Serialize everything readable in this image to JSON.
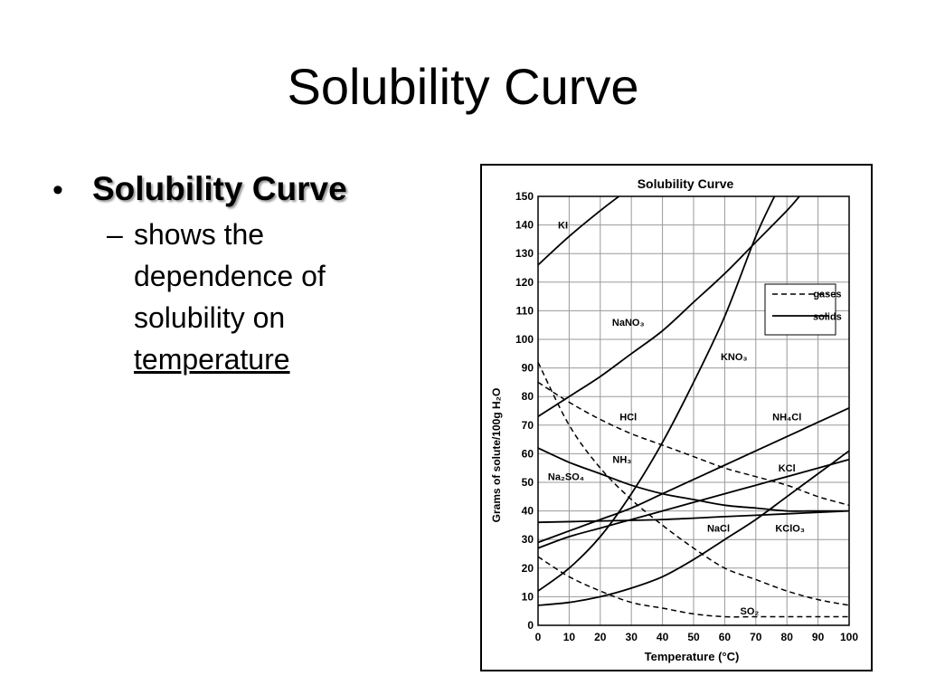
{
  "slide": {
    "title": "Solubility Curve",
    "bullet": "Solubility Curve",
    "sub_dash": "–",
    "sub_text": "shows the dependence of solubility on ",
    "sub_underlined": "temperature"
  },
  "chart_data": {
    "type": "line",
    "title": "Solubility Curve",
    "xlabel": "Temperature (°C)",
    "ylabel": "Grams of solute/100g H₂O",
    "xlim": [
      0,
      100
    ],
    "ylim": [
      0,
      150
    ],
    "xticks": [
      0,
      10,
      20,
      30,
      40,
      50,
      60,
      70,
      80,
      90,
      100
    ],
    "yticks": [
      0,
      10,
      20,
      30,
      40,
      50,
      60,
      70,
      80,
      90,
      100,
      110,
      120,
      130,
      140,
      150
    ],
    "grid": true,
    "legend": {
      "position": "top-right",
      "entries": [
        {
          "label": "gases",
          "style": "dashed"
        },
        {
          "label": "solids",
          "style": "solid"
        }
      ]
    },
    "series": [
      {
        "name": "KI",
        "style": "solid",
        "points": [
          [
            0,
            126
          ],
          [
            10,
            136
          ],
          [
            20,
            145
          ],
          [
            26,
            150
          ]
        ]
      },
      {
        "name": "NaNO3",
        "style": "solid",
        "points": [
          [
            0,
            73
          ],
          [
            10,
            80
          ],
          [
            20,
            87
          ],
          [
            30,
            95
          ],
          [
            40,
            103
          ],
          [
            50,
            113
          ],
          [
            60,
            123
          ],
          [
            70,
            134
          ],
          [
            80,
            145
          ],
          [
            84,
            150
          ]
        ]
      },
      {
        "name": "KNO3",
        "style": "solid",
        "points": [
          [
            0,
            12
          ],
          [
            10,
            20
          ],
          [
            20,
            31
          ],
          [
            30,
            46
          ],
          [
            40,
            64
          ],
          [
            50,
            85
          ],
          [
            60,
            108
          ],
          [
            70,
            136
          ],
          [
            76,
            150
          ]
        ]
      },
      {
        "name": "HCl",
        "style": "dashed",
        "points": [
          [
            0,
            85
          ],
          [
            10,
            78
          ],
          [
            20,
            72
          ],
          [
            30,
            67
          ],
          [
            40,
            63
          ],
          [
            50,
            59
          ],
          [
            60,
            55
          ],
          [
            70,
            52
          ],
          [
            80,
            49
          ],
          [
            90,
            45
          ],
          [
            100,
            42
          ]
        ]
      },
      {
        "name": "NH4Cl",
        "style": "solid",
        "points": [
          [
            0,
            29
          ],
          [
            10,
            33
          ],
          [
            20,
            37
          ],
          [
            30,
            41
          ],
          [
            40,
            46
          ],
          [
            50,
            51
          ],
          [
            60,
            56
          ],
          [
            70,
            61
          ],
          [
            80,
            66
          ],
          [
            90,
            71
          ],
          [
            100,
            76
          ]
        ]
      },
      {
        "name": "KCl",
        "style": "solid",
        "points": [
          [
            0,
            27
          ],
          [
            10,
            31
          ],
          [
            20,
            34
          ],
          [
            30,
            37
          ],
          [
            40,
            40
          ],
          [
            50,
            43
          ],
          [
            60,
            46
          ],
          [
            70,
            49
          ],
          [
            80,
            52
          ],
          [
            90,
            55
          ],
          [
            100,
            58
          ]
        ]
      },
      {
        "name": "NH3",
        "style": "dashed",
        "points": [
          [
            0,
            92
          ],
          [
            10,
            70
          ],
          [
            20,
            55
          ],
          [
            30,
            44
          ],
          [
            40,
            35
          ],
          [
            50,
            27
          ],
          [
            60,
            20
          ],
          [
            70,
            16
          ],
          [
            80,
            12
          ],
          [
            90,
            9
          ],
          [
            100,
            7
          ]
        ]
      },
      {
        "name": "Na2SO4",
        "style": "solid",
        "points": [
          [
            0,
            62
          ],
          [
            10,
            57
          ],
          [
            20,
            53
          ],
          [
            30,
            49
          ],
          [
            40,
            46
          ],
          [
            50,
            44
          ],
          [
            60,
            42
          ],
          [
            70,
            41
          ],
          [
            80,
            40
          ],
          [
            90,
            40
          ],
          [
            100,
            40
          ]
        ]
      },
      {
        "name": "NaCl",
        "style": "solid",
        "points": [
          [
            0,
            36
          ],
          [
            20,
            36.5
          ],
          [
            40,
            37
          ],
          [
            60,
            38
          ],
          [
            80,
            39
          ],
          [
            100,
            40
          ]
        ]
      },
      {
        "name": "KClO3",
        "style": "solid",
        "points": [
          [
            0,
            7
          ],
          [
            10,
            8
          ],
          [
            20,
            10
          ],
          [
            30,
            13
          ],
          [
            40,
            17
          ],
          [
            50,
            23
          ],
          [
            60,
            30
          ],
          [
            70,
            37
          ],
          [
            80,
            45
          ],
          [
            90,
            53
          ],
          [
            100,
            61
          ]
        ]
      },
      {
        "name": "SO2",
        "style": "dashed",
        "points": [
          [
            0,
            24
          ],
          [
            10,
            17
          ],
          [
            20,
            12
          ],
          [
            30,
            8
          ],
          [
            40,
            6
          ],
          [
            50,
            4
          ],
          [
            60,
            3
          ],
          [
            70,
            3
          ],
          [
            80,
            3
          ],
          [
            90,
            3
          ],
          [
            100,
            3
          ]
        ]
      }
    ],
    "labels": [
      {
        "text": "KI",
        "x": 8,
        "y": 140
      },
      {
        "text": "NaNO₃",
        "x": 29,
        "y": 106
      },
      {
        "text": "KNO₃",
        "x": 63,
        "y": 94
      },
      {
        "text": "gases",
        "x": 93,
        "y": 116
      },
      {
        "text": "solids",
        "x": 93,
        "y": 108
      },
      {
        "text": "HCl",
        "x": 29,
        "y": 73
      },
      {
        "text": "NH₄Cl",
        "x": 80,
        "y": 73
      },
      {
        "text": "NH₃",
        "x": 27,
        "y": 58
      },
      {
        "text": "Na₂SO₄",
        "x": 9,
        "y": 52
      },
      {
        "text": "KCl",
        "x": 80,
        "y": 55
      },
      {
        "text": "NaCl",
        "x": 58,
        "y": 34
      },
      {
        "text": "KClO₃",
        "x": 81,
        "y": 34
      },
      {
        "text": "SO₂",
        "x": 68,
        "y": 5
      }
    ]
  }
}
